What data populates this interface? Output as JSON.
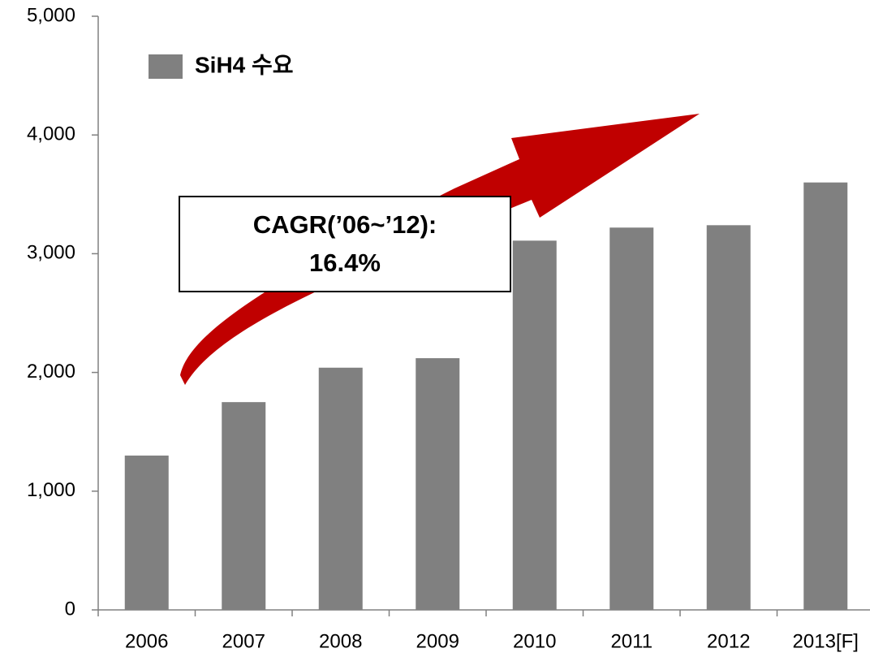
{
  "chart_data": {
    "type": "bar",
    "categories": [
      "2006",
      "2007",
      "2008",
      "2009",
      "2010",
      "2011",
      "2012",
      "2013[F]"
    ],
    "series": [
      {
        "name": "SiH4 수요",
        "color": "#808080",
        "values": [
          1300,
          1750,
          2040,
          2120,
          3110,
          3220,
          3240,
          3600
        ]
      }
    ],
    "ylim": [
      0,
      5000
    ],
    "yticks": [
      0,
      {
        "value": 1000,
        "label": "1,000"
      },
      {
        "value": 2000,
        "label": "2,000"
      },
      {
        "value": 3000,
        "label": "3,000"
      },
      {
        "value": 4000,
        "label": "4,000"
      },
      {
        "value": 5000,
        "label": "5,000"
      }
    ],
    "legend": "upper left",
    "annotation": [
      "CAGR(’06~’12):",
      "16.4%"
    ]
  }
}
